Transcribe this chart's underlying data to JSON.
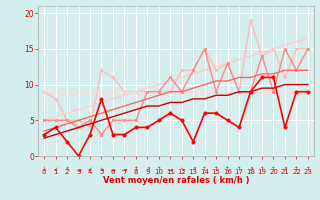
{
  "x": [
    0,
    1,
    2,
    3,
    4,
    5,
    6,
    7,
    8,
    9,
    10,
    11,
    12,
    13,
    14,
    15,
    16,
    17,
    18,
    19,
    20,
    21,
    22,
    23
  ],
  "series": [
    {
      "label": "light_pink_markers",
      "color": "#ffbbbb",
      "lw": 1.0,
      "marker": "o",
      "ms": 2.0,
      "values": [
        9,
        8,
        5,
        5,
        4,
        12,
        11,
        9,
        9,
        9,
        9,
        9,
        12,
        12,
        15,
        12,
        13,
        9,
        19,
        14,
        15,
        11,
        15,
        15
      ]
    },
    {
      "label": "light_pink_diagonal_top",
      "color": "#ffcccc",
      "lw": 1.0,
      "marker": null,
      "ms": 0,
      "values": [
        5,
        5.5,
        6,
        6.5,
        7,
        7.5,
        8,
        8.5,
        9,
        9.5,
        10,
        10.5,
        11,
        11.5,
        12,
        12.5,
        13,
        13.5,
        14,
        14.5,
        15,
        15.5,
        16,
        16.5
      ]
    },
    {
      "label": "light_pink_diagonal_bottom",
      "color": "#ffdddd",
      "lw": 1.0,
      "marker": null,
      "ms": 0,
      "values": [
        9,
        9,
        9,
        9,
        9,
        9,
        9,
        9,
        9,
        9,
        9,
        9,
        9,
        9,
        9,
        9,
        9,
        9,
        9,
        9,
        9,
        9,
        9,
        9
      ]
    },
    {
      "label": "medium_pink_markers",
      "color": "#ff8888",
      "lw": 1.0,
      "marker": "o",
      "ms": 2.0,
      "values": [
        5,
        5,
        5,
        4,
        5,
        3,
        5,
        5,
        5,
        9,
        9,
        11,
        9,
        12,
        15,
        9,
        13,
        9,
        9,
        14,
        9,
        15,
        12,
        15
      ]
    },
    {
      "label": "medium_diagonal",
      "color": "#ff6666",
      "lw": 1.0,
      "marker": null,
      "ms": 0,
      "values": [
        3.5,
        4.0,
        4.5,
        5.0,
        5.5,
        6.0,
        6.5,
        7.0,
        7.5,
        8.0,
        8.5,
        9.0,
        9.0,
        9.5,
        10.0,
        10.5,
        10.5,
        11.0,
        11.0,
        11.5,
        11.5,
        12.0,
        12.0,
        12.0
      ]
    },
    {
      "label": "dark_red_diagonal",
      "color": "#cc0000",
      "lw": 1.0,
      "marker": null,
      "ms": 0,
      "values": [
        2.5,
        3.0,
        3.5,
        4.0,
        4.5,
        5.0,
        5.5,
        6.0,
        6.5,
        7.0,
        7.0,
        7.5,
        7.5,
        8.0,
        8.0,
        8.5,
        8.5,
        9.0,
        9.0,
        9.5,
        9.5,
        10.0,
        10.0,
        10.0
      ]
    },
    {
      "label": "dark_red_markers",
      "color": "#ff0000",
      "lw": 1.2,
      "marker": "o",
      "ms": 2.5,
      "values": [
        3,
        4,
        2,
        0,
        3,
        8,
        3,
        3,
        4,
        4,
        5,
        6,
        5,
        2,
        6,
        6,
        5,
        4,
        9,
        11,
        11,
        4,
        9,
        9
      ]
    }
  ],
  "arrows": [
    "↓",
    "↙",
    "↖",
    "→",
    "↙",
    "↘",
    "→",
    "→",
    "↑",
    "↗",
    "↑",
    "→",
    "↘",
    "↗",
    "↑",
    "↑",
    "↑",
    "↑",
    "↗",
    "↑",
    "↑",
    "↗",
    "↑",
    "↑"
  ],
  "xlabel": "Vent moyen/en rafales ( km/h )",
  "ylim": [
    0,
    21
  ],
  "xlim": [
    -0.5,
    23.5
  ],
  "yticks": [
    0,
    5,
    10,
    15,
    20
  ],
  "xticks": [
    0,
    1,
    2,
    3,
    4,
    5,
    6,
    7,
    8,
    9,
    10,
    11,
    12,
    13,
    14,
    15,
    16,
    17,
    18,
    19,
    20,
    21,
    22,
    23
  ],
  "bg_color": "#d4eeed",
  "grid_color": "#ffffff",
  "text_color": "#dd0000"
}
